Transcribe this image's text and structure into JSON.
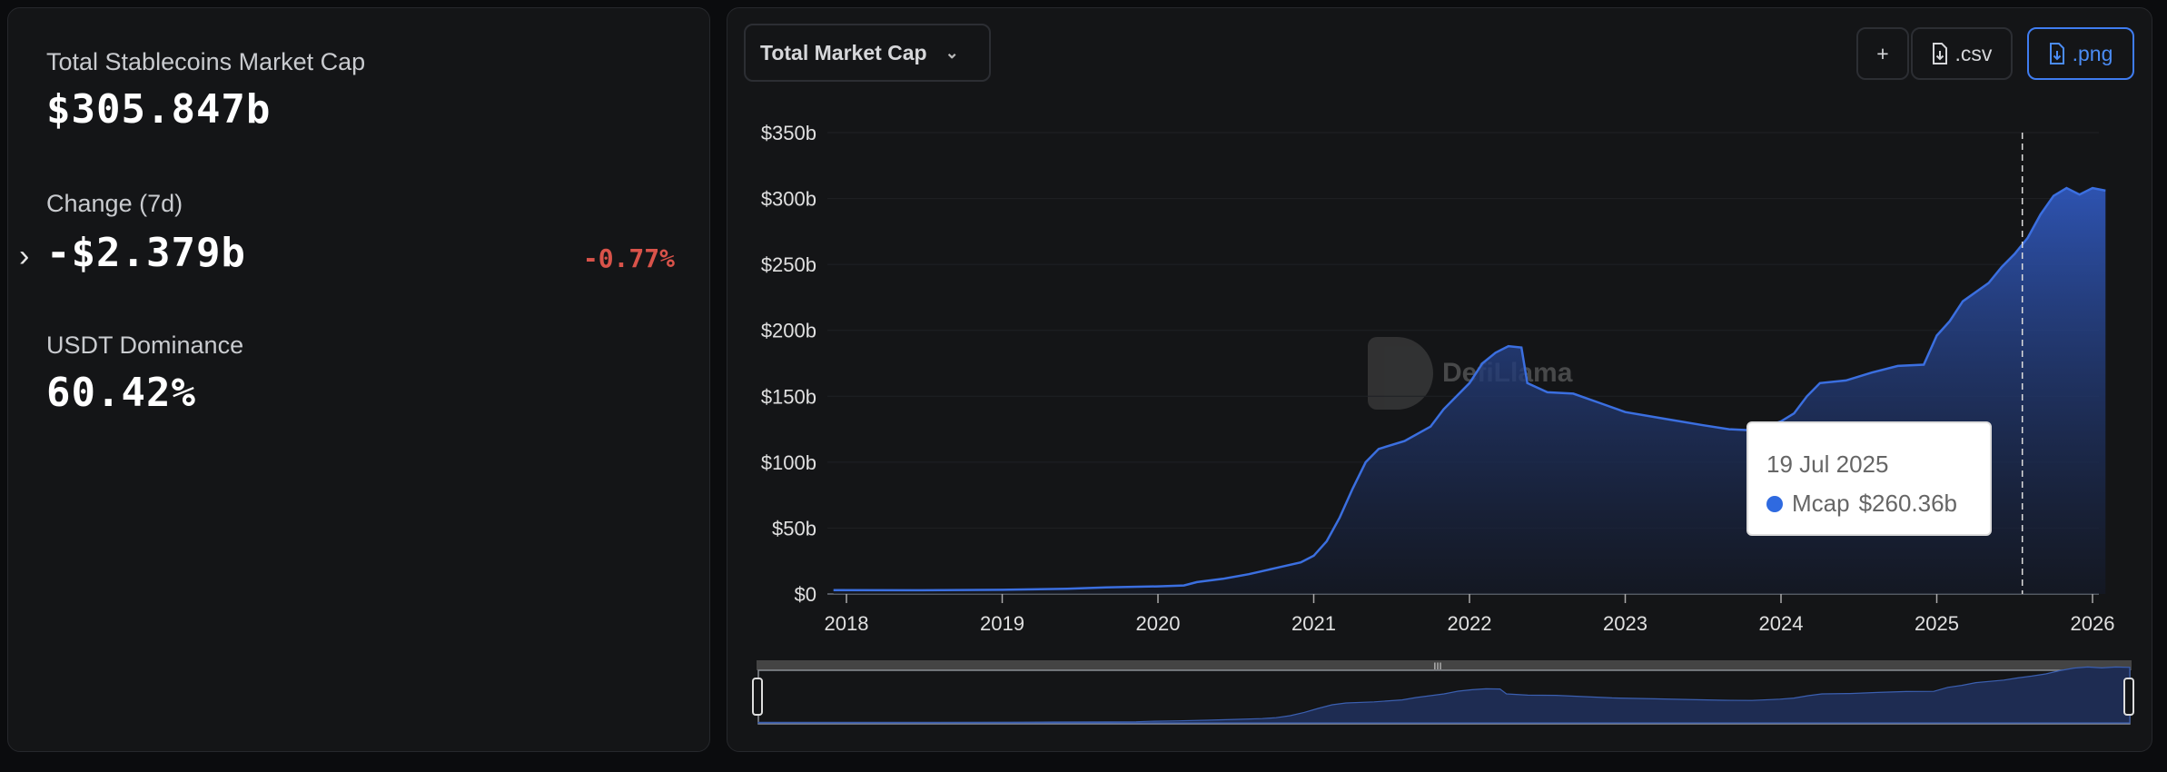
{
  "summary": {
    "market_cap_label": "Total Stablecoins Market Cap",
    "market_cap_value": "$305.847b",
    "change_label": "Change (7d)",
    "change_value": "-$2.379b",
    "change_pct": "-0.77%",
    "dominance_label": "USDT Dominance",
    "dominance_value": "60.42%",
    "expand_icon": "chevron-right-icon"
  },
  "toolbar": {
    "metric_select": "Total Market Cap",
    "add_label": "+",
    "csv_label": ".csv",
    "png_label": ".png"
  },
  "colors": {
    "accent": "#3f7cf0",
    "negative": "#d9534a",
    "series": "#3b6fe0"
  },
  "watermark": "DefiLlama",
  "tooltip": {
    "date": "19 Jul 2025",
    "series": "Mcap",
    "value": "$260.36b"
  },
  "chart_data": {
    "type": "area",
    "series": [
      {
        "name": "Mcap",
        "points": [
          [
            "2017-12",
            2.9
          ],
          [
            "2018-06",
            2.8
          ],
          [
            "2019-01",
            3.2
          ],
          [
            "2019-06",
            4
          ],
          [
            "2019-09",
            5
          ],
          [
            "2020-01",
            5.8
          ],
          [
            "2020-03",
            6.5
          ],
          [
            "2020-04",
            9
          ],
          [
            "2020-06",
            11.5
          ],
          [
            "2020-08",
            15
          ],
          [
            "2020-10",
            19.5
          ],
          [
            "2020-12",
            24
          ],
          [
            "2021-01",
            29
          ],
          [
            "2021-02",
            40
          ],
          [
            "2021-03",
            58
          ],
          [
            "2021-04",
            80
          ],
          [
            "2021-05",
            100
          ],
          [
            "2021-06",
            110
          ],
          [
            "2021-08",
            116
          ],
          [
            "2021-10",
            127
          ],
          [
            "2021-11",
            140
          ],
          [
            "2022-01",
            160
          ],
          [
            "2022-02",
            175
          ],
          [
            "2022-03",
            183
          ],
          [
            "2022-04",
            188
          ],
          [
            "2022-05",
            187
          ],
          [
            "2022-05-15",
            160
          ],
          [
            "2022-07",
            153
          ],
          [
            "2022-09",
            152
          ],
          [
            "2022-11",
            145
          ],
          [
            "2023-01",
            138
          ],
          [
            "2023-04",
            133
          ],
          [
            "2023-07",
            128
          ],
          [
            "2023-09",
            125
          ],
          [
            "2023-11",
            124
          ],
          [
            "2024-01",
            131
          ],
          [
            "2024-02",
            137
          ],
          [
            "2024-03",
            150
          ],
          [
            "2024-04",
            160
          ],
          [
            "2024-06",
            162
          ],
          [
            "2024-08",
            168
          ],
          [
            "2024-10",
            173
          ],
          [
            "2024-12",
            174
          ],
          [
            "2025-01",
            196
          ],
          [
            "2025-02",
            207
          ],
          [
            "2025-03",
            222
          ],
          [
            "2025-05",
            236
          ],
          [
            "2025-06",
            248
          ],
          [
            "2025-07",
            258
          ],
          [
            "2025-08",
            270
          ],
          [
            "2025-09",
            288
          ],
          [
            "2025-10",
            302
          ],
          [
            "2025-11",
            308
          ],
          [
            "2025-12",
            303
          ],
          [
            "2026-01",
            308
          ],
          [
            "2026-02",
            306
          ]
        ]
      }
    ],
    "y_ticks": [
      "$0",
      "$50b",
      "$100b",
      "$150b",
      "$200b",
      "$250b",
      "$300b",
      "$350b"
    ],
    "x_ticks": [
      "2018",
      "2019",
      "2020",
      "2021",
      "2022",
      "2023",
      "2024",
      "2025",
      "2026"
    ],
    "ylim": [
      0,
      350
    ],
    "xlim": [
      "2017-12",
      "2026-02"
    ],
    "unit": "billions USD",
    "grid": true,
    "legend": "none",
    "crosshair_date": "2025-07-19",
    "brush_range": [
      "2017-12",
      "2026-02"
    ]
  }
}
